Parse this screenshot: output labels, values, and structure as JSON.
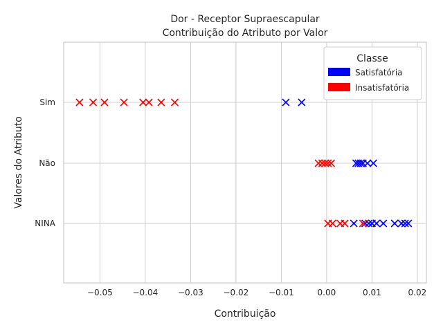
{
  "chart_data": {
    "type": "scatter",
    "title": "Dor - Receptor Supraescapular",
    "subtitle": "Contribuição do Atributo por Valor",
    "xlabel": "Contribuição",
    "ylabel": "Valores do Atributo",
    "xlim": [
      -0.058,
      0.022
    ],
    "x_ticks": [
      -0.05,
      -0.04,
      -0.03,
      -0.02,
      -0.01,
      0.0,
      0.01,
      0.02
    ],
    "x_tick_labels": [
      "−0.05",
      "−0.04",
      "−0.03",
      "−0.02",
      "−0.01",
      "0.00",
      "0.01",
      "0.02"
    ],
    "categories": [
      "Sim",
      "Não",
      "NINA"
    ],
    "grid": true,
    "marker": "x",
    "legend": {
      "title": "Classe",
      "placement": "top-right",
      "entries": [
        {
          "label": "Satisfatória",
          "color": "#0000ff"
        },
        {
          "label": "Insatisfatória",
          "color": "#ff0000"
        }
      ]
    },
    "series": [
      {
        "name": "Satisfatória",
        "color": "#0000ff",
        "points": [
          {
            "category": "Sim",
            "x": -0.009
          },
          {
            "category": "Sim",
            "x": -0.0055
          },
          {
            "category": "Não",
            "x": 0.0065
          },
          {
            "category": "Não",
            "x": 0.007
          },
          {
            "category": "Não",
            "x": 0.0075
          },
          {
            "category": "Não",
            "x": 0.008
          },
          {
            "category": "Não",
            "x": 0.009
          },
          {
            "category": "Não",
            "x": 0.0103
          },
          {
            "category": "NINA",
            "x": 0.006
          },
          {
            "category": "NINA",
            "x": 0.0085
          },
          {
            "category": "NINA",
            "x": 0.0093
          },
          {
            "category": "NINA",
            "x": 0.01
          },
          {
            "category": "NINA",
            "x": 0.011
          },
          {
            "category": "NINA",
            "x": 0.0125
          },
          {
            "category": "NINA",
            "x": 0.015
          },
          {
            "category": "NINA",
            "x": 0.0165
          },
          {
            "category": "NINA",
            "x": 0.0173
          },
          {
            "category": "NINA",
            "x": 0.018
          }
        ]
      },
      {
        "name": "Insatisfatória",
        "color": "#ff0000",
        "points": [
          {
            "category": "Sim",
            "x": -0.0545
          },
          {
            "category": "Sim",
            "x": -0.0515
          },
          {
            "category": "Sim",
            "x": -0.049
          },
          {
            "category": "Sim",
            "x": -0.0447
          },
          {
            "category": "Sim",
            "x": -0.0405
          },
          {
            "category": "Sim",
            "x": -0.0392
          },
          {
            "category": "Sim",
            "x": -0.0365
          },
          {
            "category": "Sim",
            "x": -0.0335
          },
          {
            "category": "Não",
            "x": -0.0018
          },
          {
            "category": "Não",
            "x": -0.001
          },
          {
            "category": "Não",
            "x": -0.0003
          },
          {
            "category": "Não",
            "x": 0.0003
          },
          {
            "category": "Não",
            "x": 0.001
          },
          {
            "category": "NINA",
            "x": 0.0003
          },
          {
            "category": "NINA",
            "x": 0.0013
          },
          {
            "category": "NINA",
            "x": 0.003
          },
          {
            "category": "NINA",
            "x": 0.004
          },
          {
            "category": "NINA",
            "x": 0.008
          }
        ]
      }
    ]
  }
}
